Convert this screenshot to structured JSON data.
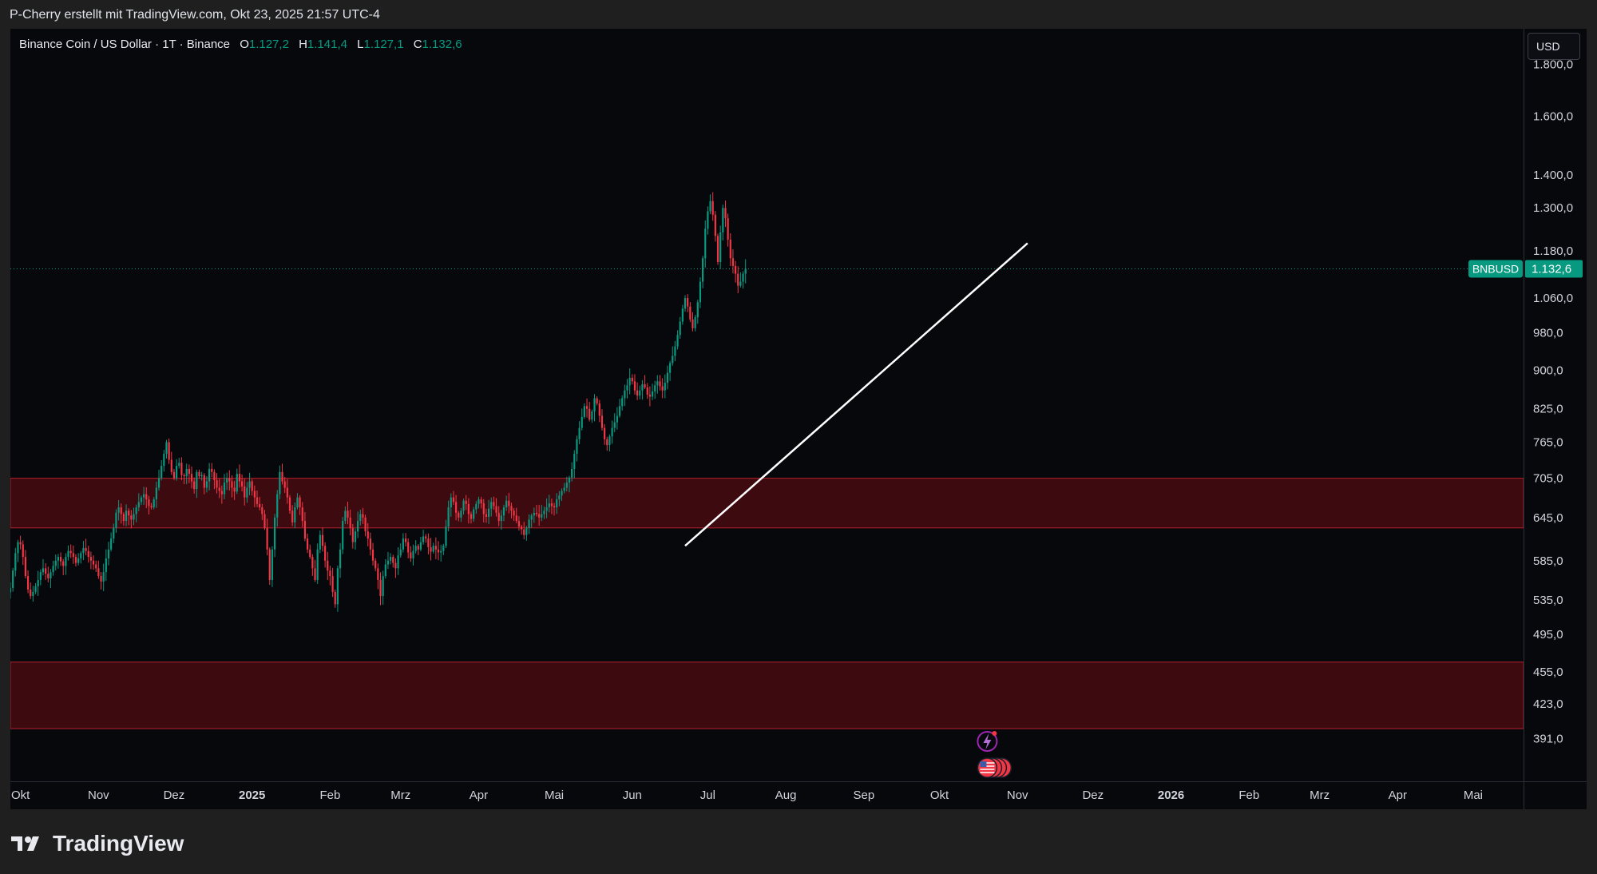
{
  "header": "P-Cherry erstellt mit TradingView.com, Okt 23, 2025 21:57 UTC-4",
  "legend": {
    "symbol": "Binance Coin / US Dollar · 1T · Binance",
    "open_label": "O",
    "open": "1.127,2",
    "high_label": "H",
    "high": "1.141,4",
    "low_label": "L",
    "low": "1.127,1",
    "close_label": "C",
    "close": "1.132,6"
  },
  "currency_button": "USD",
  "brand": "TradingView",
  "colors": {
    "background": "#06080c",
    "up": "#089981",
    "down": "#f23645",
    "zone_fill": "#3d0a10",
    "zone_border": "#b4202c",
    "trendline": "#ffffff",
    "label_bg": "#089981"
  },
  "chart_data": {
    "type": "candlestick",
    "symbol": "BNBUSD",
    "last_price_label": "BNBUSD",
    "last_price": 1132.6,
    "last_price_text": "1.132,6",
    "y_scale": "log",
    "ylim": [
      355,
      1950
    ],
    "xlim": [
      "2024-09-27",
      "2026-05-21"
    ],
    "grid": false,
    "y_ticks": [
      {
        "value": 1800,
        "label": "1.800,0"
      },
      {
        "value": 1600,
        "label": "1.600,0"
      },
      {
        "value": 1400,
        "label": "1.400,0"
      },
      {
        "value": 1300,
        "label": "1.300,0"
      },
      {
        "value": 1180,
        "label": "1.180,0"
      },
      {
        "value": 1060,
        "label": "1.060,0"
      },
      {
        "value": 980,
        "label": "980,0"
      },
      {
        "value": 900,
        "label": "900,0"
      },
      {
        "value": 825,
        "label": "825,0"
      },
      {
        "value": 765,
        "label": "765,0"
      },
      {
        "value": 705,
        "label": "705,0"
      },
      {
        "value": 645,
        "label": "645,0"
      },
      {
        "value": 585,
        "label": "585,0"
      },
      {
        "value": 535,
        "label": "535,0"
      },
      {
        "value": 495,
        "label": "495,0"
      },
      {
        "value": 455,
        "label": "455,0"
      },
      {
        "value": 423,
        "label": "423,0"
      },
      {
        "value": 391,
        "label": "391,0"
      }
    ],
    "x_ticks": [
      {
        "date": "2024-10-01",
        "label": "Okt",
        "bold": false
      },
      {
        "date": "2024-11-01",
        "label": "Nov",
        "bold": false
      },
      {
        "date": "2024-12-01",
        "label": "Dez",
        "bold": false
      },
      {
        "date": "2025-01-01",
        "label": "2025",
        "bold": true
      },
      {
        "date": "2025-02-01",
        "label": "Feb",
        "bold": false
      },
      {
        "date": "2025-03-01",
        "label": "Mrz",
        "bold": false
      },
      {
        "date": "2025-04-01",
        "label": "Apr",
        "bold": false
      },
      {
        "date": "2025-05-01",
        "label": "Mai",
        "bold": false
      },
      {
        "date": "2025-06-01",
        "label": "Jun",
        "bold": false
      },
      {
        "date": "2025-07-01",
        "label": "Jul",
        "bold": false
      },
      {
        "date": "2025-08-01",
        "label": "Aug",
        "bold": false
      },
      {
        "date": "2025-09-01",
        "label": "Sep",
        "bold": false
      },
      {
        "date": "2025-10-01",
        "label": "Okt",
        "bold": false
      },
      {
        "date": "2025-11-01",
        "label": "Nov",
        "bold": false
      },
      {
        "date": "2025-12-01",
        "label": "Dez",
        "bold": false
      },
      {
        "date": "2026-01-01",
        "label": "2026",
        "bold": true
      },
      {
        "date": "2026-02-01",
        "label": "Feb",
        "bold": false
      },
      {
        "date": "2026-03-01",
        "label": "Mrz",
        "bold": false
      },
      {
        "date": "2026-04-01",
        "label": "Apr",
        "bold": false
      },
      {
        "date": "2026-05-01",
        "label": "Mai",
        "bold": false
      }
    ],
    "zones": [
      {
        "low": 630,
        "high": 705
      },
      {
        "low": 400,
        "high": 465
      }
    ],
    "trendline": {
      "start": {
        "date": "2025-06-22",
        "price": 605
      },
      "end": {
        "date": "2025-11-05",
        "price": 1200
      }
    },
    "close_series": {
      "start_date": "2024-09-27",
      "interval": "1D",
      "values": [
        550,
        572,
        595,
        610,
        607,
        590,
        565,
        548,
        540,
        545,
        552,
        560,
        570,
        575,
        568,
        562,
        570,
        578,
        585,
        590,
        584,
        578,
        590,
        598,
        595,
        590,
        582,
        588,
        595,
        602,
        598,
        590,
        585,
        580,
        575,
        565,
        558,
        570,
        588,
        600,
        615,
        630,
        652,
        660,
        650,
        640,
        655,
        648,
        642,
        650,
        660,
        668,
        675,
        680,
        672,
        662,
        660,
        672,
        690,
        705,
        725,
        745,
        765,
        735,
        715,
        705,
        725,
        730,
        710,
        708,
        720,
        712,
        700,
        688,
        715,
        708,
        710,
        690,
        700,
        720,
        715,
        702,
        690,
        685,
        680,
        698,
        705,
        700,
        690,
        684,
        712,
        700,
        692,
        675,
        690,
        700,
        685,
        675,
        665,
        660,
        650,
        630,
        600,
        560,
        600,
        645,
        680,
        715,
        700,
        690,
        675,
        655,
        638,
        660,
        675,
        660,
        640,
        615,
        600,
        590,
        575,
        560,
        600,
        620,
        605,
        585,
        572,
        565,
        545,
        530,
        575,
        600,
        640,
        655,
        645,
        630,
        610,
        625,
        640,
        650,
        645,
        625,
        615,
        600,
        585,
        575,
        560,
        540,
        565,
        580,
        585,
        590,
        582,
        575,
        592,
        600,
        615,
        610,
        596,
        588,
        598,
        605,
        600,
        610,
        618,
        615,
        603,
        597,
        605,
        600,
        596,
        598,
        605,
        632,
        660,
        675,
        668,
        652,
        645,
        655,
        670,
        665,
        650,
        643,
        657,
        665,
        672,
        666,
        650,
        646,
        658,
        668,
        662,
        652,
        640,
        648,
        660,
        670,
        662,
        655,
        648,
        640,
        632,
        628,
        620,
        630,
        642,
        648,
        652,
        650,
        645,
        650,
        655,
        660,
        666,
        662,
        660,
        672,
        678,
        685,
        690,
        698,
        706,
        720,
        745,
        770,
        790,
        810,
        830,
        825,
        805,
        820,
        845,
        835,
        812,
        790,
        770,
        760,
        775,
        790,
        800,
        812,
        830,
        845,
        860,
        870,
        885,
        878,
        860,
        850,
        860,
        872,
        866,
        852,
        848,
        858,
        870,
        878,
        868,
        860,
        875,
        895,
        915,
        930,
        950,
        975,
        1005,
        1035,
        1060,
        1040,
        1010,
        990,
        1015,
        1050,
        1100,
        1160,
        1240,
        1290,
        1320,
        1280,
        1220,
        1150,
        1230,
        1300,
        1270,
        1210,
        1160,
        1140,
        1120,
        1090,
        1100,
        1120,
        1133
      ]
    },
    "markers": [
      "lightning-marker",
      "us-flag-event-markers"
    ]
  }
}
